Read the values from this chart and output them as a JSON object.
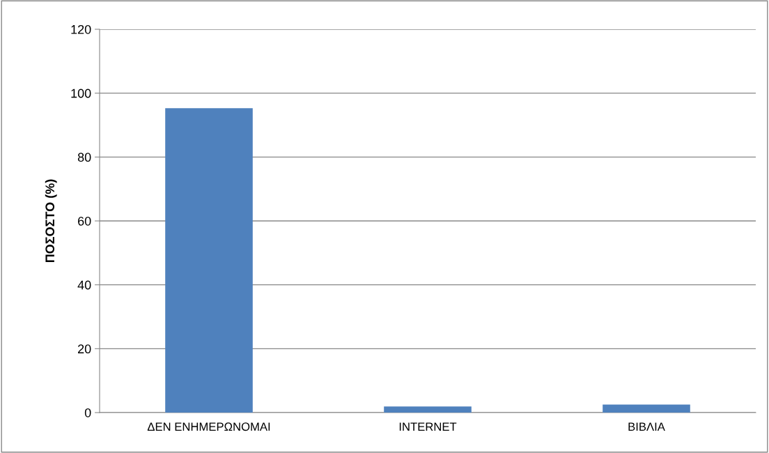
{
  "chart_data": {
    "type": "bar",
    "ylabel": "ΠΟΣΟΣΤΟ (%)",
    "categories": [
      "ΔΕΝ ΕΝΗΜΕΡΩΝΟΜΑΙ",
      "INTERNET",
      "ΒΙΒΛΙΑ"
    ],
    "values": [
      95.3,
      1.9,
      2.5
    ],
    "color": "#4f81bd",
    "ylim": [
      0,
      120
    ],
    "yticks": [
      0,
      20,
      40,
      60,
      80,
      100,
      120
    ],
    "grid": "y",
    "legend": false
  }
}
